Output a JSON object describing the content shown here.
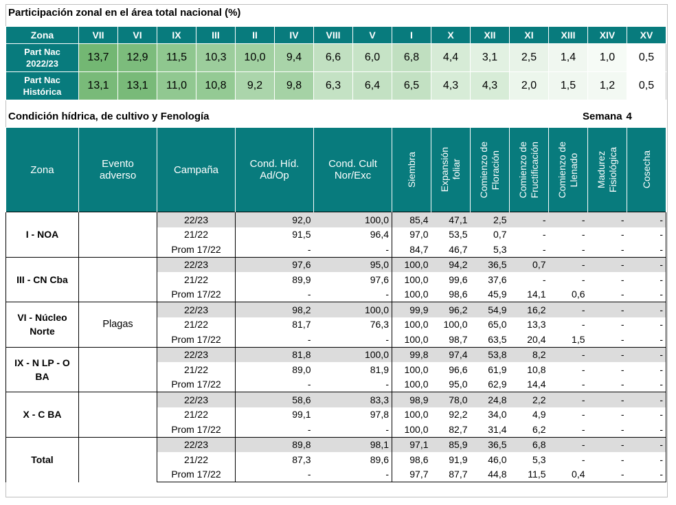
{
  "participacion": {
    "title": "Participación zonal en el área total nacional (%)",
    "header_label": "Zona",
    "zones": [
      "VII",
      "VI",
      "IX",
      "III",
      "II",
      "IV",
      "VIII",
      "V",
      "I",
      "X",
      "XII",
      "XI",
      "XIII",
      "XIV",
      "XV"
    ],
    "rows": [
      {
        "label_line1": "Part Nac",
        "label_line2": "2022/23",
        "values": [
          "13,7",
          "12,9",
          "11,5",
          "10,3",
          "10,0",
          "9,4",
          "6,6",
          "6,0",
          "6,8",
          "4,4",
          "3,1",
          "2,5",
          "1,4",
          "1,0",
          "0,5"
        ]
      },
      {
        "label_line1": "Part Nac",
        "label_line2": "Histórica",
        "values": [
          "13,1",
          "13,1",
          "11,0",
          "10,8",
          "9,2",
          "9,8",
          "6,3",
          "6,4",
          "6,5",
          "4,3",
          "4,3",
          "2,0",
          "1,5",
          "1,2",
          "0,5"
        ]
      }
    ],
    "value_colors": [
      "#73b773",
      "#7cbc7c",
      "#8fc78f",
      "#9ccd9c",
      "#a1d0a1",
      "#a9d4a9",
      "#c1e0c1",
      "#c6e3c6",
      "#c0dfc0",
      "#d6ebd6",
      "#e2f1e2",
      "#e8f3e8",
      "#f0f7f0",
      "#f6fbf6",
      "#ffffff"
    ],
    "value_colors_hist": [
      "#79ba79",
      "#79ba79",
      "#91c891",
      "#94ca94",
      "#abd5ab",
      "#a5d2a5",
      "#c4e2c4",
      "#c3e1c3",
      "#c3e1c3",
      "#d7ecd7",
      "#d7ecd7",
      "#ecf6ec",
      "#f0f7f0",
      "#f3f9f3",
      "#ffffff"
    ]
  },
  "condicion": {
    "title": "Condición hídrica, de cultivo y Fenología",
    "week_label": "Semana",
    "week_value": "4",
    "headers": {
      "zona": "Zona",
      "evento_l1": "Evento",
      "evento_l2": "adverso",
      "campana": "Campaña",
      "cond_hid_l1": "Cond. Híd.",
      "cond_hid_l2": "Ad/Op",
      "cond_cult_l1": "Cond. Cult",
      "cond_cult_l2": "Nor/Exc",
      "siembra": "Siembra",
      "expansion_l1": "Expansión",
      "expansion_l2": "foliar",
      "floracion_l1": "Comienzo de",
      "floracion_l2": "Floración",
      "fructificacion_l1": "Comienzo de",
      "fructificacion_l2": "Fructificación",
      "llenado_l1": "Comienzo de",
      "llenado_l2": "Llenado",
      "madurez_l1": "Madurez",
      "madurez_l2": "Fisiológica",
      "cosecha": "Cosecha"
    },
    "groups": [
      {
        "zone_l1": "I - NOA",
        "zone_l2": "",
        "event": "",
        "rows": [
          [
            "22/23",
            "92,0",
            "100,0",
            "85,4",
            "47,1",
            "2,5",
            "-",
            "-",
            "-",
            "-"
          ],
          [
            "21/22",
            "91,5",
            "96,4",
            "97,0",
            "53,5",
            "0,7",
            "-",
            "-",
            "-",
            "-"
          ],
          [
            "Prom 17/22",
            "-",
            "-",
            "84,7",
            "46,7",
            "5,3",
            "-",
            "-",
            "-",
            "-"
          ]
        ]
      },
      {
        "zone_l1": "III - CN Cba",
        "zone_l2": "",
        "event": "",
        "rows": [
          [
            "22/23",
            "97,6",
            "95,0",
            "100,0",
            "94,2",
            "36,5",
            "0,7",
            "-",
            "-",
            "-"
          ],
          [
            "21/22",
            "89,9",
            "97,6",
            "100,0",
            "99,6",
            "37,6",
            "-",
            "-",
            "-",
            "-"
          ],
          [
            "Prom 17/22",
            "-",
            "-",
            "100,0",
            "98,6",
            "45,9",
            "14,1",
            "0,6",
            "-",
            "-"
          ]
        ]
      },
      {
        "zone_l1": "VI - Núcleo",
        "zone_l2": "Norte",
        "event": "Plagas",
        "rows": [
          [
            "22/23",
            "98,2",
            "100,0",
            "99,9",
            "96,2",
            "54,9",
            "16,2",
            "-",
            "-",
            "-"
          ],
          [
            "21/22",
            "81,7",
            "76,3",
            "100,0",
            "100,0",
            "65,0",
            "13,3",
            "-",
            "-",
            "-"
          ],
          [
            "Prom 17/22",
            "-",
            "-",
            "100,0",
            "98,7",
            "63,5",
            "20,4",
            "1,5",
            "-",
            "-"
          ]
        ]
      },
      {
        "zone_l1": "IX - N LP - O",
        "zone_l2": "BA",
        "event": "",
        "rows": [
          [
            "22/23",
            "81,8",
            "100,0",
            "99,8",
            "97,4",
            "53,8",
            "8,2",
            "-",
            "-",
            "-"
          ],
          [
            "21/22",
            "89,0",
            "81,9",
            "100,0",
            "96,6",
            "61,9",
            "10,8",
            "-",
            "-",
            "-"
          ],
          [
            "Prom 17/22",
            "-",
            "-",
            "100,0",
            "95,0",
            "62,9",
            "14,4",
            "-",
            "-",
            "-"
          ]
        ]
      },
      {
        "zone_l1": "X - C BA",
        "zone_l2": "",
        "event": "",
        "rows": [
          [
            "22/23",
            "58,6",
            "83,3",
            "98,9",
            "78,0",
            "24,8",
            "2,2",
            "-",
            "-",
            "-"
          ],
          [
            "21/22",
            "99,1",
            "97,8",
            "100,0",
            "92,2",
            "34,0",
            "4,9",
            "-",
            "-",
            "-"
          ],
          [
            "Prom 17/22",
            "-",
            "-",
            "100,0",
            "82,7",
            "31,4",
            "6,2",
            "-",
            "-",
            "-"
          ]
        ]
      },
      {
        "zone_l1": "Total",
        "zone_l2": "",
        "event": "",
        "rows": [
          [
            "22/23",
            "89,8",
            "98,1",
            "97,1",
            "85,9",
            "36,5",
            "6,8",
            "-",
            "-",
            "-"
          ],
          [
            "21/22",
            "87,3",
            "89,6",
            "98,6",
            "91,9",
            "46,0",
            "5,3",
            "-",
            "-",
            "-"
          ],
          [
            "Prom 17/22",
            "-",
            "-",
            "97,7",
            "87,7",
            "44,8",
            "11,5",
            "0,4",
            "-",
            "-"
          ]
        ]
      }
    ]
  }
}
